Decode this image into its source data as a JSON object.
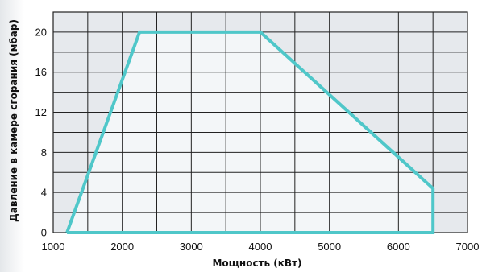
{
  "colors": {
    "grid_background": "#e6e9ed",
    "area_fill": "#f3f6f8",
    "gridline": "#222222",
    "envelope_line": "#4fc7c9"
  },
  "chart_data": {
    "type": "area",
    "title": "",
    "xlabel": "Мощность (кВт)",
    "ylabel": "Давление в камере сгорания (мбар)",
    "xlim": [
      1000,
      7000
    ],
    "ylim": [
      0,
      22
    ],
    "x_ticks": [
      1000,
      2000,
      3000,
      4000,
      5000,
      6000,
      7000
    ],
    "y_ticks": [
      0,
      4,
      8,
      12,
      16,
      20
    ],
    "x_ticklabels": [
      "1000",
      "2000",
      "3000",
      "4000",
      "5000",
      "6000",
      "7000"
    ],
    "y_ticklabels": [
      "0",
      "4",
      "8",
      "12",
      "16",
      "20"
    ],
    "grid": true,
    "grid_x_step": 500,
    "grid_y_step": 2,
    "series": [
      {
        "x": [
          1200,
          2250,
          4000,
          6500,
          6500,
          1200
        ],
        "y": [
          0,
          20,
          20,
          4.4,
          0,
          0
        ]
      }
    ]
  }
}
